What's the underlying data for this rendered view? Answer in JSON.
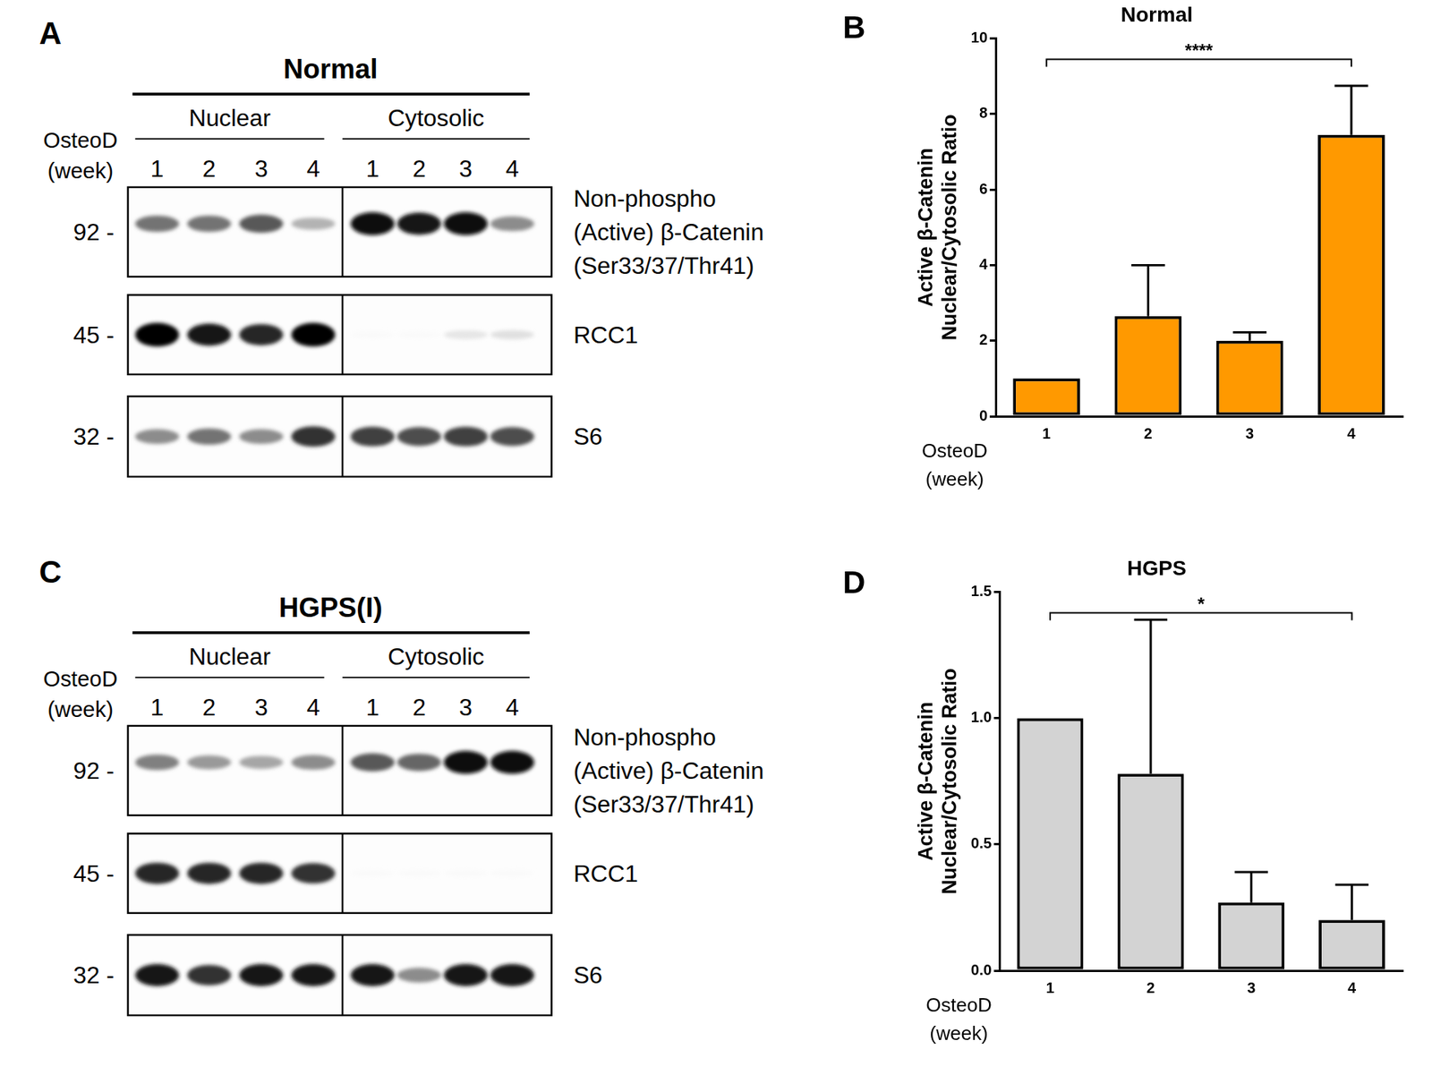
{
  "blots": [
    {
      "panel": "A",
      "title": "Normal",
      "lane_header": [
        "OsteoD",
        "(week)"
      ],
      "groups": [
        {
          "name": "Nuclear",
          "lanes": [
            "1",
            "2",
            "3",
            "4"
          ]
        },
        {
          "name": "Cytosolic",
          "lanes": [
            "1",
            "2",
            "3",
            "4"
          ]
        }
      ],
      "bands": [
        {
          "mw": "92 -",
          "label": [
            "Non-phospho",
            "(Active) β-Catenin",
            "(Ser33/37/Thr41)"
          ],
          "intensity": [
            0.55,
            0.55,
            0.65,
            0.3,
            0.95,
            0.9,
            0.95,
            0.45
          ]
        },
        {
          "mw": "45 -",
          "label": [
            "RCC1"
          ],
          "intensity": [
            1,
            0.9,
            0.85,
            1,
            0.02,
            0.02,
            0.1,
            0.12
          ]
        },
        {
          "mw": "32 -",
          "label": [
            "S6"
          ],
          "intensity": [
            0.45,
            0.55,
            0.45,
            0.8,
            0.75,
            0.7,
            0.75,
            0.7
          ]
        }
      ]
    },
    {
      "panel": "C",
      "title": "HGPS(I)",
      "lane_header": [
        "OsteoD",
        "(week)"
      ],
      "groups": [
        {
          "name": "Nuclear",
          "lanes": [
            "1",
            "2",
            "3",
            "4"
          ]
        },
        {
          "name": "Cytosolic",
          "lanes": [
            "1",
            "2",
            "3",
            "4"
          ]
        }
      ],
      "bands": [
        {
          "mw": "92 -",
          "label": [
            "Non-phospho",
            "(Active) β-Catenin",
            "(Ser33/37/Thr41)"
          ],
          "intensity": [
            0.5,
            0.4,
            0.35,
            0.45,
            0.65,
            0.6,
            0.95,
            0.95
          ]
        },
        {
          "mw": "45 -",
          "label": [
            "RCC1"
          ],
          "intensity": [
            0.85,
            0.85,
            0.85,
            0.8,
            0.02,
            0.02,
            0.02,
            0.02
          ]
        },
        {
          "mw": "32 -",
          "label": [
            "S6"
          ],
          "intensity": [
            0.9,
            0.8,
            0.9,
            0.9,
            0.9,
            0.45,
            0.9,
            0.9
          ]
        }
      ]
    }
  ],
  "chart_data": [
    {
      "panel": "B",
      "type": "bar",
      "title": "Normal",
      "xlabel": [
        "OsteoD",
        "(week)"
      ],
      "ylabel": [
        "Active β-Catenin",
        "Nuclear/Cytosolic Ratio"
      ],
      "categories": [
        "1",
        "2",
        "3",
        "4"
      ],
      "values": [
        1,
        2.65,
        2.0,
        7.45
      ],
      "errors": [
        null,
        1.35,
        0.22,
        1.3
      ],
      "color": "#ff9900",
      "ylim": [
        0,
        10
      ],
      "yticks": [
        0,
        2,
        4,
        6,
        8,
        10
      ],
      "grid": false,
      "annotations": [
        {
          "text": "****",
          "from": "1",
          "to": "4"
        }
      ]
    },
    {
      "panel": "D",
      "type": "bar",
      "title": "HGPS",
      "xlabel": [
        "OsteoD",
        "(week)"
      ],
      "ylabel": [
        "Active β-Catenin",
        "Nuclear/Cytosolic Ratio"
      ],
      "categories": [
        "1",
        "2",
        "3",
        "4"
      ],
      "values": [
        1.0,
        0.78,
        0.27,
        0.2
      ],
      "errors": [
        null,
        0.61,
        0.12,
        0.14
      ],
      "color": "#d3d3d3",
      "ylim": [
        0,
        1.5
      ],
      "yticks": [
        {
          "value": 0,
          "label": "0.0"
        },
        {
          "value": 0.5,
          "label": "0.5"
        },
        {
          "value": 1,
          "label": "1.0"
        },
        {
          "value": 1.5,
          "label": "1.5"
        }
      ],
      "grid": false,
      "annotations": [
        {
          "text": "*",
          "from": "1",
          "to": "4"
        }
      ]
    }
  ]
}
